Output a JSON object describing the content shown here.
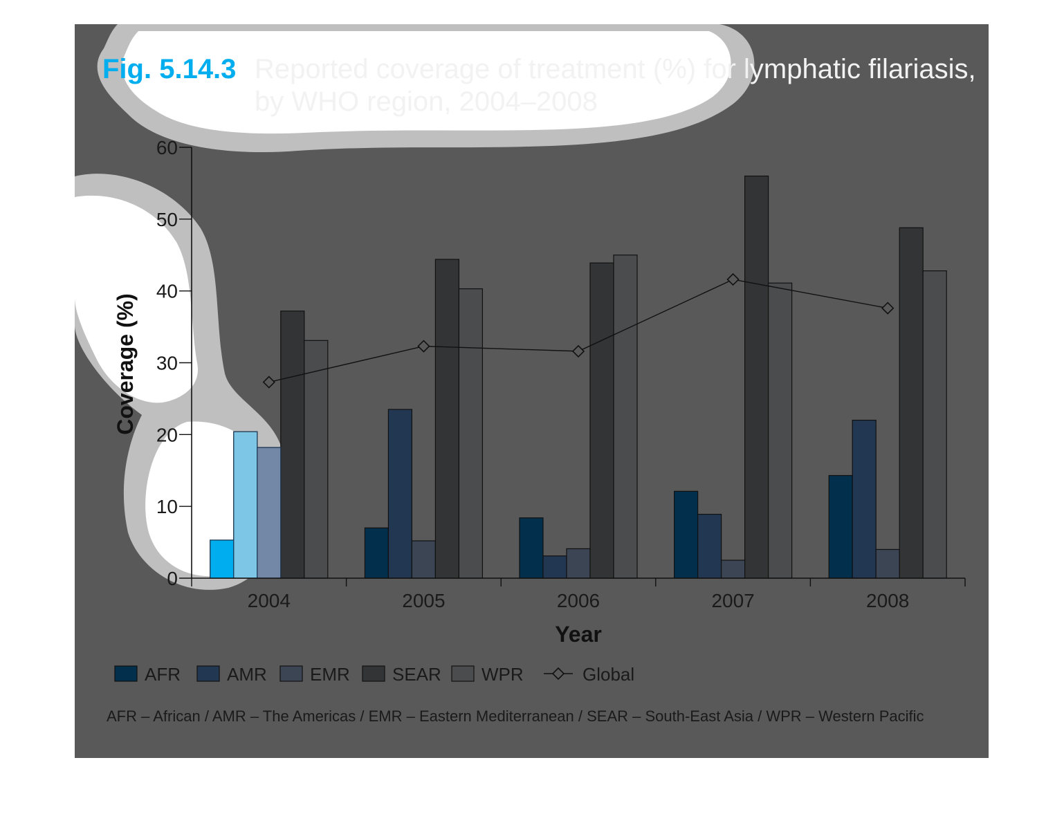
{
  "figure": {
    "number": "Fig. 5.14.3",
    "title_line1": "Reported coverage of treatment (%) for lymphatic filariasis,",
    "title_line2": "by WHO region, 2004–2008",
    "footnote": "AFR – African / AMR – The Americas / EMR – Eastern Mediterranean / SEAR – South-East Asia / WPR – Western Pacific",
    "colors": {
      "background": "#595959",
      "accent": "#00aeef",
      "highlight_fill": "#8ee0ff",
      "halo": "#bfbfbf"
    }
  },
  "chart_data": {
    "type": "bar",
    "title": "Reported coverage of treatment (%) for lymphatic filariasis, by WHO region, 2004–2008",
    "xlabel": "Year",
    "ylabel": "Coverage (%)",
    "ylim": [
      0,
      60
    ],
    "yticks": [
      0,
      10,
      20,
      30,
      40,
      50,
      60
    ],
    "categories": [
      "2004",
      "2005",
      "2006",
      "2007",
      "2008"
    ],
    "series": [
      {
        "name": "AFR",
        "color": "#022f4b",
        "values": [
          5.3,
          7.0,
          8.4,
          12.1,
          14.3
        ]
      },
      {
        "name": "AMR",
        "color": "#223751",
        "values": [
          20.4,
          23.5,
          3.1,
          8.9,
          22.0
        ]
      },
      {
        "name": "EMR",
        "color": "#3b4554",
        "values": [
          18.2,
          5.2,
          4.1,
          2.5,
          4.0
        ]
      },
      {
        "name": "SEAR",
        "color": "#333435",
        "values": [
          37.2,
          44.4,
          43.9,
          56.0,
          48.8
        ]
      },
      {
        "name": "WPR",
        "color": "#4b4c4d",
        "values": [
          33.1,
          40.3,
          45.0,
          41.1,
          42.8
        ]
      }
    ],
    "line_series": {
      "name": "Global",
      "values": [
        27.3,
        32.3,
        31.6,
        41.6,
        37.6
      ],
      "marker": "diamond"
    },
    "legend": {
      "position": "bottom"
    },
    "grid": false
  }
}
